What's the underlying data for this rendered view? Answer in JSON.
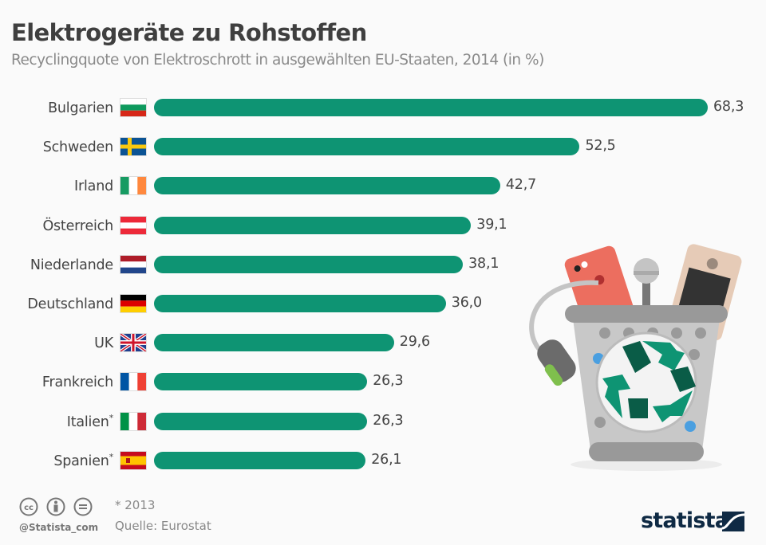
{
  "header": {
    "title": "Elektrogeräte zu Rohstoffen",
    "subtitle": "Recyclingquote von Elektroschrott in ausgewählten EU-Staaten, 2014 (in %)"
  },
  "chart_data": {
    "type": "bar",
    "orientation": "horizontal",
    "title": "Elektrogeräte zu Rohstoffen",
    "subtitle": "Recyclingquote von Elektroschrott in ausgewählten EU-Staaten, 2014 (in %)",
    "xlabel": "",
    "ylabel": "",
    "xlim": [
      0,
      68.3
    ],
    "grid": false,
    "bar_color": "#0e9473",
    "categories": [
      "Bulgarien",
      "Schweden",
      "Irland",
      "Österreich",
      "Niederlande",
      "Deutschland",
      "UK",
      "Frankreich",
      "Italien",
      "Spanien"
    ],
    "footnote_markers": [
      "",
      "",
      "",
      "",
      "",
      "",
      "",
      "",
      "*",
      "*"
    ],
    "values": [
      68.3,
      52.5,
      42.7,
      39.1,
      38.1,
      36.0,
      29.6,
      26.3,
      26.3,
      26.1
    ],
    "value_labels": [
      "68,3",
      "52,5",
      "42,7",
      "39,1",
      "38,1",
      "36,0",
      "29,6",
      "26,3",
      "26,3",
      "26,1"
    ],
    "flags": [
      "flag-bulgaria",
      "flag-sweden",
      "flag-ireland",
      "flag-austria",
      "flag-netherlands",
      "flag-germany",
      "flag-uk",
      "flag-france",
      "flag-italy",
      "flag-spain"
    ]
  },
  "footer": {
    "note": "* 2013",
    "source": "Quelle: Eurostat",
    "handle": "@Statista_com",
    "brand": "statista",
    "license_icons": [
      "cc-icon",
      "attribution-icon",
      "no-derivatives-icon"
    ]
  },
  "illustration": {
    "name": "recycling-bin-with-electronics",
    "colors": {
      "recycle_light": "#0e9473",
      "recycle_dark": "#0a5c47",
      "bin": "#c8c8c8",
      "phone": "#ec6e5f"
    }
  }
}
